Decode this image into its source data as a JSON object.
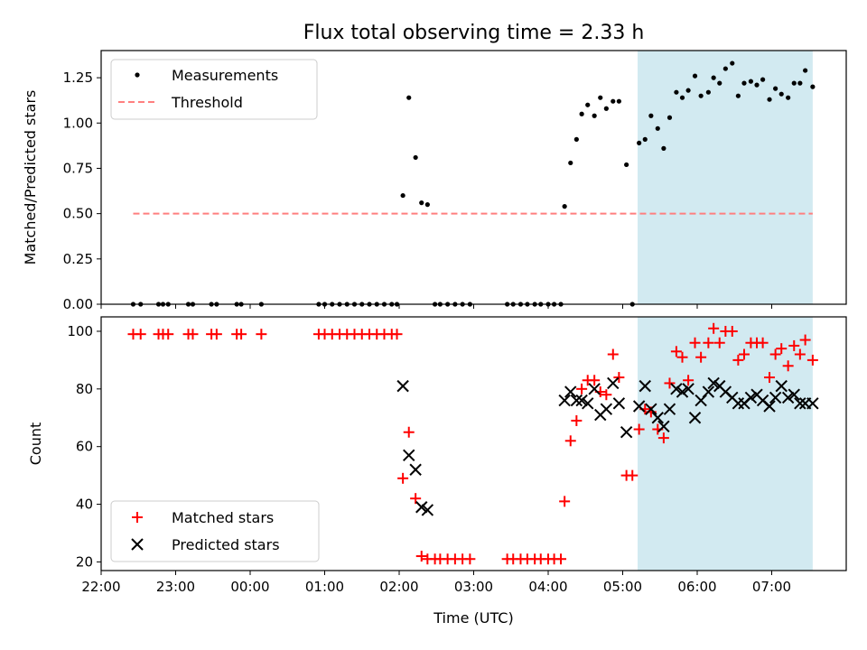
{
  "chart_data": [
    {
      "type": "scatter",
      "title": "Flux total observing time = 2.33 h",
      "ylabel": "Matched/Predicted stars",
      "xlabel": "",
      "xlim": [
        22.0,
        32.0
      ],
      "ylim": [
        0.0,
        1.4
      ],
      "x_unit": "hours after 22:00 UTC of the first day",
      "xtick_values": [
        22,
        23,
        24,
        25,
        26,
        27,
        28,
        29,
        30,
        31
      ],
      "xtick_labels": [
        "22:00",
        "23:00",
        "00:00",
        "01:00",
        "02:00",
        "03:00",
        "04:00",
        "05:00",
        "06:00",
        "07:00"
      ],
      "ytick_values": [
        0.0,
        0.25,
        0.5,
        0.75,
        1.0,
        1.25
      ],
      "ytick_labels": [
        "0.00",
        "0.25",
        "0.50",
        "0.75",
        "1.00",
        "1.25"
      ],
      "shaded_region": {
        "x": [
          29.2,
          31.55
        ],
        "color": "#add8e6"
      },
      "legend_position": "upper left",
      "series": [
        {
          "name": "Measurements",
          "kind": "scatter",
          "marker": "dot",
          "color": "#000000",
          "x": [
            22.43,
            22.53,
            22.77,
            22.83,
            22.9,
            23.17,
            23.23,
            23.48,
            23.55,
            23.82,
            23.88,
            24.15,
            24.92,
            25.0,
            25.1,
            25.2,
            25.3,
            25.4,
            25.5,
            25.6,
            25.7,
            25.8,
            25.9,
            25.97,
            26.05,
            26.13,
            26.22,
            26.3,
            26.38,
            26.48,
            26.55,
            26.65,
            26.75,
            26.85,
            26.95,
            27.45,
            27.53,
            27.63,
            27.72,
            27.82,
            27.9,
            28.0,
            28.08,
            28.17,
            28.22,
            28.3,
            28.38,
            28.45,
            28.53,
            28.62,
            28.7,
            28.78,
            28.87,
            28.95,
            29.05,
            29.13,
            29.22,
            29.3,
            29.38,
            29.47,
            29.55,
            29.63,
            29.72,
            29.8,
            29.88,
            29.97,
            30.05,
            30.15,
            30.22,
            30.3,
            30.38,
            30.47,
            30.55,
            30.63,
            30.72,
            30.8,
            30.88,
            30.97,
            31.05,
            31.13,
            31.22,
            31.3,
            31.38,
            31.45,
            31.55
          ],
          "y": [
            0,
            0,
            0,
            0,
            0,
            0,
            0,
            0,
            0,
            0,
            0,
            0,
            0,
            0,
            0,
            0,
            0,
            0,
            0,
            0,
            0,
            0,
            0,
            0,
            0.6,
            1.14,
            0.81,
            0.56,
            0.55,
            0,
            0,
            0,
            0,
            0,
            0,
            0,
            0,
            0,
            0,
            0,
            0,
            0,
            0,
            0,
            0.54,
            0.78,
            0.91,
            1.05,
            1.1,
            1.04,
            1.14,
            1.08,
            1.12,
            1.12,
            0.77,
            0,
            0.89,
            0.91,
            1.04,
            0.97,
            0.86,
            1.03,
            1.17,
            1.14,
            1.18,
            1.26,
            1.15,
            1.17,
            1.25,
            1.22,
            1.3,
            1.33,
            1.15,
            1.22,
            1.23,
            1.21,
            1.24,
            1.13,
            1.19,
            1.16,
            1.14,
            1.22,
            1.22,
            1.29,
            1.2
          ]
        },
        {
          "name": "Threshold",
          "kind": "line",
          "style": "dashed",
          "color": "#ff7f7f",
          "x": [
            22.43,
            31.55
          ],
          "y": [
            0.5,
            0.5
          ]
        }
      ]
    },
    {
      "type": "scatter",
      "title": "",
      "ylabel": "Count",
      "xlabel": "Time (UTC)",
      "xlim": [
        22.0,
        32.0
      ],
      "ylim": [
        17.0,
        105.0
      ],
      "x_unit": "hours after 22:00 UTC of the first day",
      "xtick_values": [
        22,
        23,
        24,
        25,
        26,
        27,
        28,
        29,
        30,
        31
      ],
      "xtick_labels": [
        "22:00",
        "23:00",
        "00:00",
        "01:00",
        "02:00",
        "03:00",
        "04:00",
        "05:00",
        "06:00",
        "07:00"
      ],
      "ytick_values": [
        20,
        40,
        60,
        80,
        100
      ],
      "ytick_labels": [
        "20",
        "40",
        "60",
        "80",
        "100"
      ],
      "shaded_region": {
        "x": [
          29.2,
          31.55
        ],
        "color": "#add8e6"
      },
      "legend_position": "lower left",
      "series": [
        {
          "name": "Matched stars",
          "kind": "scatter",
          "marker": "plus",
          "color": "#ff0000",
          "x": [
            22.43,
            22.53,
            22.77,
            22.83,
            22.9,
            23.17,
            23.23,
            23.48,
            23.55,
            23.82,
            23.88,
            24.15,
            24.92,
            25.0,
            25.1,
            25.2,
            25.3,
            25.4,
            25.5,
            25.6,
            25.7,
            25.8,
            25.9,
            25.97,
            26.05,
            26.13,
            26.22,
            26.3,
            26.38,
            26.48,
            26.55,
            26.65,
            26.75,
            26.85,
            26.95,
            27.45,
            27.53,
            27.63,
            27.72,
            27.82,
            27.9,
            28.0,
            28.08,
            28.17,
            28.22,
            28.3,
            28.38,
            28.45,
            28.53,
            28.62,
            28.7,
            28.78,
            28.87,
            28.95,
            29.05,
            29.13,
            29.22,
            29.3,
            29.38,
            29.47,
            29.55,
            29.63,
            29.72,
            29.8,
            29.88,
            29.97,
            30.05,
            30.15,
            30.22,
            30.3,
            30.38,
            30.47,
            30.55,
            30.63,
            30.72,
            30.8,
            30.88,
            30.97,
            31.05,
            31.13,
            31.22,
            31.3,
            31.38,
            31.45,
            31.55
          ],
          "y": [
            99,
            99,
            99,
            99,
            99,
            99,
            99,
            99,
            99,
            99,
            99,
            99,
            99,
            99,
            99,
            99,
            99,
            99,
            99,
            99,
            99,
            99,
            99,
            99,
            49,
            65,
            42,
            22,
            21,
            21,
            21,
            21,
            21,
            21,
            21,
            21,
            21,
            21,
            21,
            21,
            21,
            21,
            21,
            21,
            41,
            62,
            69,
            80,
            83,
            83,
            79,
            78,
            92,
            84,
            50,
            50,
            66,
            73,
            72,
            66,
            63,
            82,
            93,
            91,
            83,
            96,
            91,
            96,
            101,
            96,
            100,
            100,
            90,
            92,
            96,
            96,
            96,
            84,
            92,
            94,
            88,
            95,
            92,
            97,
            90
          ]
        },
        {
          "name": "Predicted stars",
          "kind": "scatter",
          "marker": "x",
          "color": "#000000",
          "x": [
            26.05,
            26.13,
            26.22,
            26.3,
            26.38,
            28.22,
            28.3,
            28.38,
            28.45,
            28.53,
            28.62,
            28.7,
            28.78,
            28.87,
            28.95,
            29.05,
            29.22,
            29.3,
            29.38,
            29.47,
            29.55,
            29.63,
            29.72,
            29.8,
            29.88,
            29.97,
            30.05,
            30.15,
            30.22,
            30.3,
            30.38,
            30.47,
            30.55,
            30.63,
            30.72,
            30.8,
            30.88,
            30.97,
            31.05,
            31.13,
            31.22,
            31.3,
            31.38,
            31.45,
            31.55
          ],
          "y": [
            81,
            57,
            52,
            39,
            38,
            76,
            79,
            76,
            76,
            75,
            80,
            71,
            73,
            82,
            75,
            65,
            74,
            81,
            73,
            70,
            67,
            73,
            80,
            79,
            80,
            70,
            76,
            79,
            82,
            81,
            79,
            77,
            75,
            75,
            77,
            78,
            76,
            74,
            77,
            81,
            77,
            78,
            75,
            75,
            75
          ]
        }
      ]
    }
  ]
}
